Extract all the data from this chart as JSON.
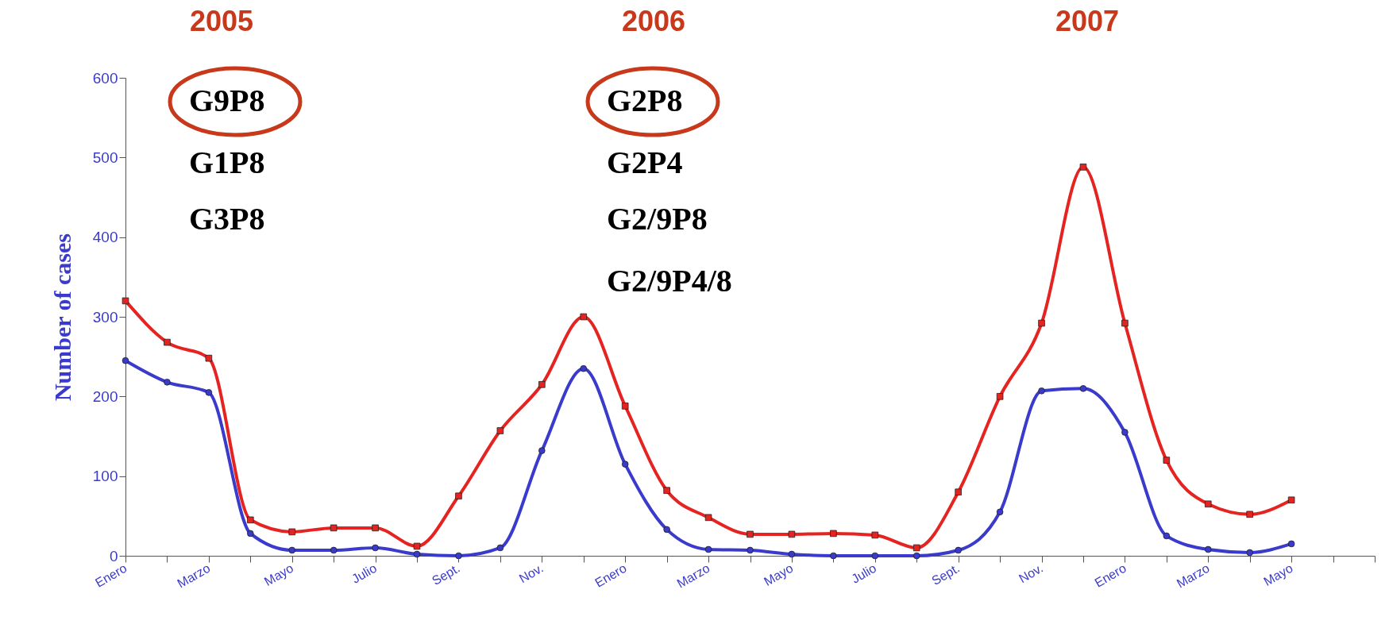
{
  "chart_data": {
    "type": "line",
    "ylabel": "Number of cases",
    "categories": [
      "Enero",
      null,
      "Marzo",
      null,
      "Mayo",
      null,
      "Julio",
      null,
      "Sept.",
      null,
      "Nov.",
      null,
      "Enero",
      null,
      "Marzo",
      null,
      "Mayo",
      null,
      "Julio",
      null,
      "Sept.",
      null,
      "Nov.",
      null,
      "Enero",
      null,
      "Marzo",
      null,
      "Mayo",
      null,
      null
    ],
    "series": [
      {
        "color": "#e52421",
        "marker": "square",
        "values": [
          320,
          268,
          248,
          45,
          30,
          35,
          35,
          12,
          75,
          157,
          215,
          300,
          188,
          82,
          48,
          27,
          27,
          28,
          26,
          10,
          80,
          200,
          292,
          488,
          292,
          120,
          65,
          52,
          70,
          null,
          null
        ]
      },
      {
        "color": "#3a3acc",
        "marker": "circle",
        "values": [
          245,
          218,
          205,
          28,
          7,
          7,
          10,
          2,
          0,
          10,
          132,
          235,
          115,
          33,
          8,
          7,
          2,
          0,
          0,
          0,
          7,
          55,
          207,
          210,
          155,
          25,
          8,
          4,
          15,
          null,
          null
        ]
      }
    ],
    "ylim": [
      0,
      600
    ],
    "yticks": [
      0,
      100,
      200,
      300,
      400,
      500,
      600
    ],
    "grid": false,
    "annotations": [
      "2005",
      "2006",
      "2007",
      "G9P8",
      "G1P8",
      "G3P8",
      "G2P8",
      "G2P4",
      "G2/9P8",
      "G2/9P4/8"
    ]
  }
}
